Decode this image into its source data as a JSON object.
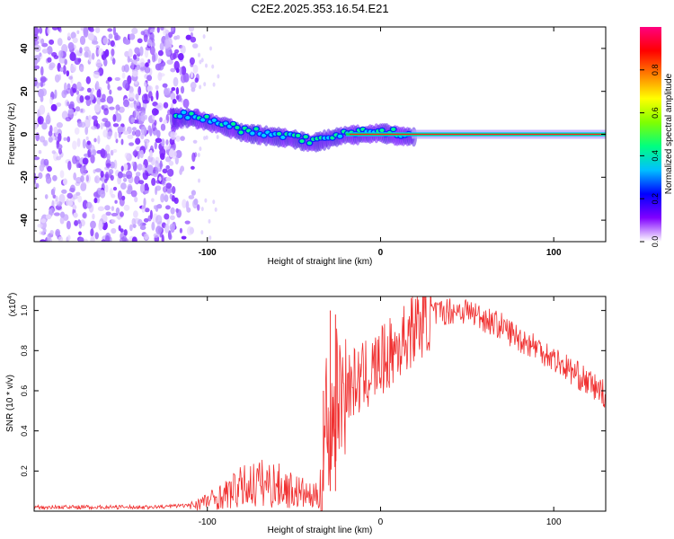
{
  "title": "C2E2.2025.353.16.54.E21",
  "chart_data": [
    {
      "type": "heatmap",
      "title": "C2E2.2025.353.16.54.E21",
      "xlabel": "Height of straight line (km)",
      "ylabel": "Frequency (Hz)",
      "xlim": [
        -200,
        130
      ],
      "ylim": [
        -50,
        50
      ],
      "xticks": [
        -100,
        0,
        100
      ],
      "yticks": [
        -40,
        -20,
        0,
        20,
        40
      ],
      "colorbar": {
        "label": "Normalized spectral amplitude",
        "range": [
          0,
          1
        ],
        "ticks": [
          "0.0",
          "0.2",
          "0.4",
          "0.6",
          "0.8"
        ],
        "colors": [
          "#ffffff",
          "#8000ff",
          "#0000ff",
          "#00c0ff",
          "#00ff80",
          "#80ff00",
          "#ffff00",
          "#ff8000",
          "#ff0000",
          "#ff0080"
        ]
      },
      "noise_region_x": [
        -200,
        -105
      ],
      "trace": {
        "x": [
          -120,
          -110,
          -100,
          -90,
          -80,
          -70,
          -60,
          -50,
          -40,
          -30,
          -20,
          -10,
          0,
          10,
          20,
          130
        ],
        "freq": [
          9,
          9,
          7,
          5,
          2,
          1,
          0,
          -1,
          -3,
          -1,
          1,
          1,
          2,
          0.5,
          0,
          0
        ]
      }
    },
    {
      "type": "line",
      "xlabel": "Height of straight line (km)",
      "ylabel": "SNR (10 * v/v)",
      "y_scale_label": "(x10",
      "y_scale_exponent": "4",
      "xlim": [
        -200,
        130
      ],
      "ylim": [
        0,
        1.07
      ],
      "xticks": [
        -100,
        0,
        100
      ],
      "yticks": [
        "0.2",
        "0.4",
        "0.6",
        "0.8",
        "1.0"
      ],
      "color": "#f03030",
      "envelope": {
        "x": [
          -200,
          -130,
          -110,
          -100,
          -90,
          -80,
          -70,
          -60,
          -50,
          -45,
          -40,
          -33,
          -32,
          -29,
          -25,
          -20,
          -10,
          0,
          10,
          20,
          30,
          40,
          50,
          60,
          70,
          80,
          90,
          100,
          110,
          120,
          130
        ],
        "y": [
          0.02,
          0.02,
          0.03,
          0.05,
          0.08,
          0.12,
          0.14,
          0.13,
          0.1,
          0.09,
          0.07,
          0.08,
          0.5,
          0.4,
          0.58,
          0.62,
          0.66,
          0.74,
          0.82,
          0.92,
          0.98,
          1.0,
          1.0,
          0.96,
          0.92,
          0.86,
          0.82,
          0.76,
          0.7,
          0.64,
          0.58
        ]
      },
      "spikes": [
        {
          "x": -29,
          "y": 1.0
        },
        {
          "x": -26,
          "y": 0.98
        },
        {
          "x": -33,
          "y": 0.6
        }
      ]
    }
  ]
}
